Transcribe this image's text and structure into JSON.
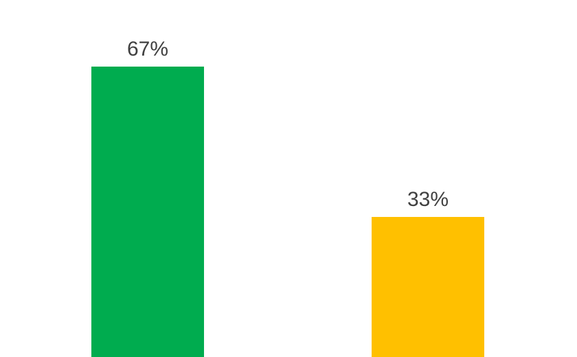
{
  "page": {
    "background": "#FFFFFF"
  },
  "chart_data": {
    "type": "bar",
    "title": "",
    "xlabel": "",
    "ylabel": "",
    "ylim": [
      0,
      100
    ],
    "grid": false,
    "legend": false,
    "axes_visible": false,
    "background": "#FFFFFF",
    "label_color": "#404040",
    "categories": [
      "",
      ""
    ],
    "values": [
      67,
      33
    ],
    "data_labels": [
      "67%",
      "33%"
    ],
    "bar_colors": [
      "#00AC4F",
      "#FFC000"
    ],
    "bars": [
      {
        "label": "67%",
        "value": 67,
        "color": "#00AC4F"
      },
      {
        "label": "33%",
        "value": 33,
        "color": "#FFC000"
      }
    ]
  }
}
